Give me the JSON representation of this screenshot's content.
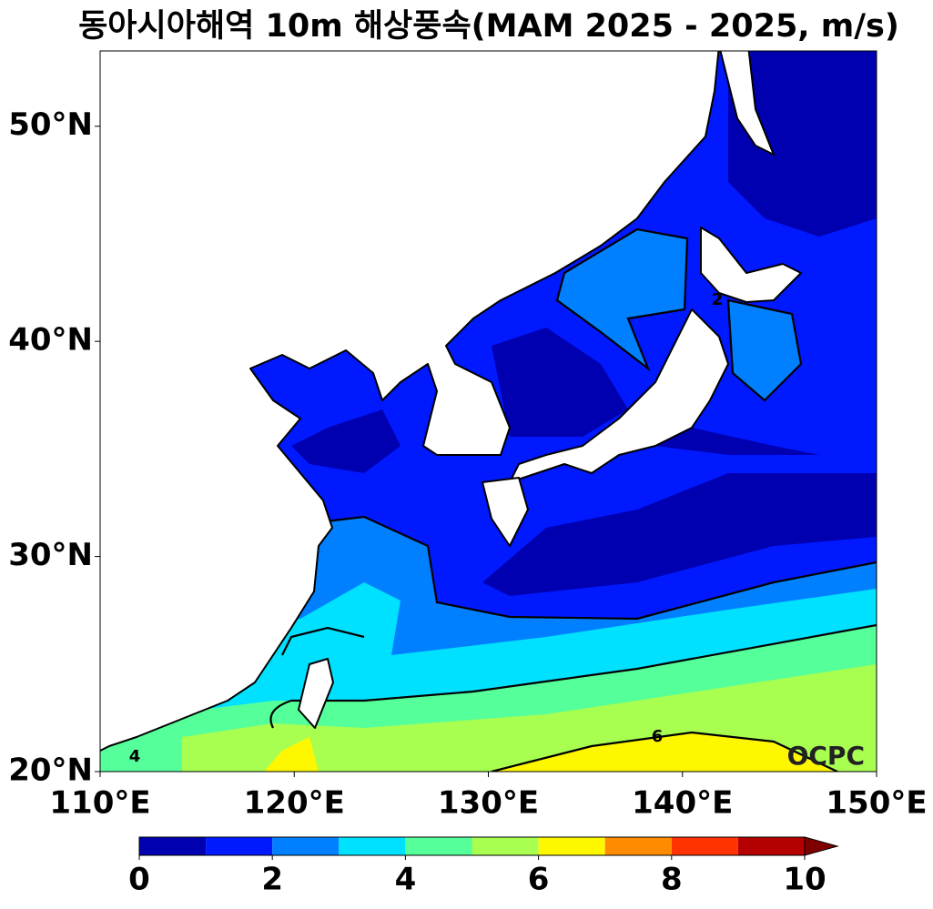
{
  "map": {
    "title": "동아시아해역 10m 해상풍속(MAM 2025 - 2025, m/s)",
    "xlim": [
      110,
      150
    ],
    "ylim": [
      20,
      53.5
    ],
    "xticks": [
      {
        "value": 110,
        "label": "110°E"
      },
      {
        "value": 120,
        "label": "120°E"
      },
      {
        "value": 130,
        "label": "130°E"
      },
      {
        "value": 140,
        "label": "140°E"
      },
      {
        "value": 150,
        "label": "150°E"
      }
    ],
    "yticks": [
      {
        "value": 20,
        "label": "20°N"
      },
      {
        "value": 30,
        "label": "30°N"
      },
      {
        "value": 40,
        "label": "40°N"
      },
      {
        "value": 50,
        "label": "50°N"
      }
    ],
    "colorbar": {
      "levels": [
        0,
        1,
        2,
        3,
        4,
        5,
        6,
        7,
        8,
        9,
        10
      ],
      "colors": [
        "#0000b0",
        "#0019ff",
        "#0080ff",
        "#00e0ff",
        "#55ff9a",
        "#a8ff50",
        "#fff700",
        "#ff8c00",
        "#ff3300",
        "#b40000"
      ],
      "extend_color": "#800000",
      "ticks": [
        0,
        2,
        4,
        6,
        8,
        10
      ]
    },
    "contour_labels": [
      "2",
      "4",
      "6"
    ],
    "watermark": "OCPC"
  }
}
